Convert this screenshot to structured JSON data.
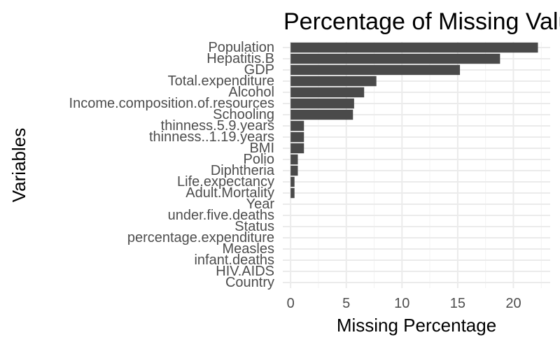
{
  "chart_data": {
    "type": "bar",
    "orientation": "horizontal",
    "title": "Percentage of Missing Values",
    "xlabel": "Missing Percentage",
    "ylabel": "Variables",
    "xlim": [
      -0.7,
      23.3
    ],
    "xticks": [
      0,
      5,
      10,
      15,
      20
    ],
    "grid": true,
    "legend": "none",
    "bar_color": "#4a4a4a",
    "categories": [
      "Population",
      "Hepatitis.B",
      "GDP",
      "Total.expenditure",
      "Alcohol",
      "Income.composition.of.resources",
      "Schooling",
      "thinness.5.9.years",
      "thinness..1.19.years",
      "BMI",
      "Polio",
      "Diphtheria",
      "Life.expectancy",
      "Adult.Mortality",
      "Year",
      "under.five.deaths",
      "Status",
      "percentage.expenditure",
      "Measles",
      "infant.deaths",
      "HIV.AIDS",
      "Country"
    ],
    "values": [
      22.2,
      18.8,
      15.2,
      7.7,
      6.6,
      5.7,
      5.6,
      1.2,
      1.2,
      1.2,
      0.65,
      0.65,
      0.35,
      0.35,
      0,
      0,
      0,
      0,
      0,
      0,
      0,
      0
    ]
  }
}
